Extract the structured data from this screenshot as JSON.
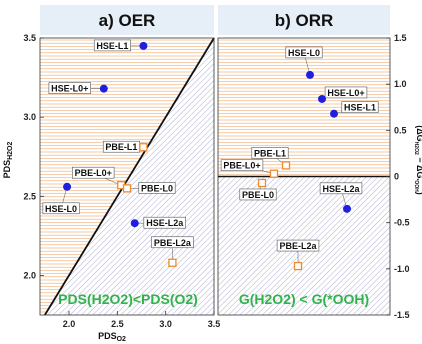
{
  "colors": {
    "orange_hatch": "#f0a868",
    "purple_hatch": "#a9a6cf",
    "title_bg": "#e6eef7",
    "blue_marker": "#1f1fe0",
    "orange_marker": "#f08a2a",
    "green_text": "#2fb34a"
  },
  "chart_data": [
    {
      "type": "scatter",
      "title": "a) OER",
      "xlabel_main": "PDS",
      "xlabel_sub": "O2",
      "ylabel_main": "PDS",
      "ylabel_sub": "H2O2",
      "xlim": [
        1.7,
        3.5
      ],
      "ylim": [
        1.75,
        3.5
      ],
      "xticks": [
        "2.0",
        "2.5",
        "3.0",
        "3.5"
      ],
      "yticks": [
        "2.0",
        "2.5",
        "3.0",
        "3.5"
      ],
      "diagonal": "y = x",
      "region_above": "orange-hatched",
      "region_below": "purple-hatched",
      "annotation": "PDS(H2O2)<PDS(O2)",
      "series": [
        {
          "marker": "filled-circle",
          "points": [
            {
              "label": "HSE-L1",
              "x": 2.77,
              "y": 3.45
            },
            {
              "label": "HSE-L0+",
              "x": 2.36,
              "y": 3.18
            },
            {
              "label": "HSE-L0",
              "x": 1.98,
              "y": 2.56
            },
            {
              "label": "HSE-L2a",
              "x": 2.68,
              "y": 2.33
            }
          ]
        },
        {
          "marker": "open-square",
          "points": [
            {
              "label": "PBE-L1",
              "x": 2.77,
              "y": 2.81
            },
            {
              "label": "PBE-L0+",
              "x": 2.54,
              "y": 2.57
            },
            {
              "label": "PBE-L0",
              "x": 2.6,
              "y": 2.55
            },
            {
              "label": "PBE-L2a",
              "x": 3.07,
              "y": 2.08
            }
          ]
        }
      ]
    },
    {
      "type": "scatter",
      "title": "b) ORR",
      "ylabel": "(ΔG_H2O2 − ΔG_*OOH)",
      "ylim": [
        -1.5,
        1.5
      ],
      "yticks": [
        "1.5",
        "1.0",
        "0.5",
        "0",
        "-0.5",
        "-1.0",
        "-1.5"
      ],
      "zero_line": true,
      "region_above": "orange-hatched",
      "region_below": "purple-hatched",
      "annotation": "G(H2O2) < G(*OOH)",
      "series": [
        {
          "marker": "filled-circle",
          "points": [
            {
              "label": "HSE-L0",
              "y": 1.1
            },
            {
              "label": "HSE-L0+",
              "y": 0.84
            },
            {
              "label": "HSE-L1",
              "y": 0.68
            },
            {
              "label": "HSE-L2a",
              "y": -0.35
            }
          ]
        },
        {
          "marker": "open-square",
          "points": [
            {
              "label": "PBE-L1",
              "y": 0.12
            },
            {
              "label": "PBE-L0+",
              "y": 0.03
            },
            {
              "label": "PBE-L0",
              "y": -0.07
            },
            {
              "label": "PBE-L2a",
              "y": -0.97
            }
          ]
        }
      ]
    }
  ]
}
